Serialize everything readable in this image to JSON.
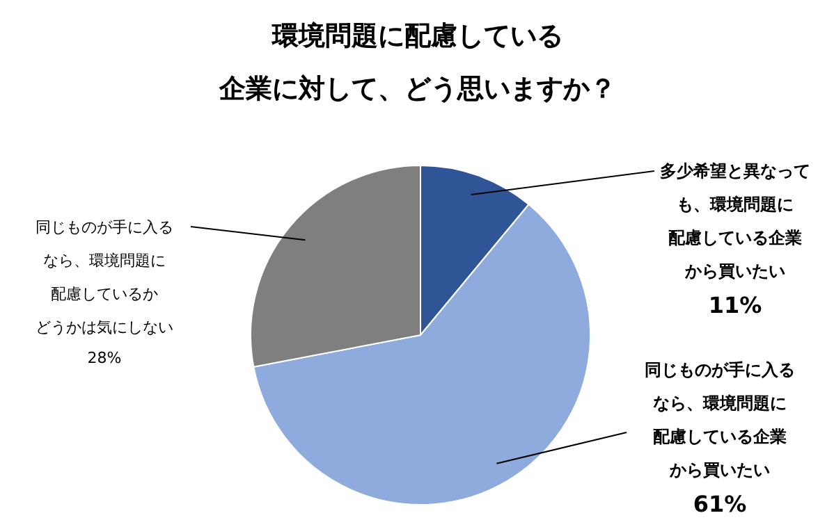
{
  "chart_data": {
    "type": "pie",
    "title": "環境問題に配慮している企業に対して、どう思いますか？",
    "categories": [
      "多少希望と異なっても、環境問題に配慮している企業から買いたい",
      "同じものが手に入るなら、環境問題に配慮している企業から買いたい",
      "同じものが手に入るなら、環境問題に配慮しているかどうかは気にしない"
    ],
    "values": [
      11,
      61,
      28
    ],
    "colors": [
      "#2f5597",
      "#8faadc",
      "#7f7f7f"
    ],
    "value_labels": [
      "11%",
      "61%",
      "28%"
    ]
  }
}
